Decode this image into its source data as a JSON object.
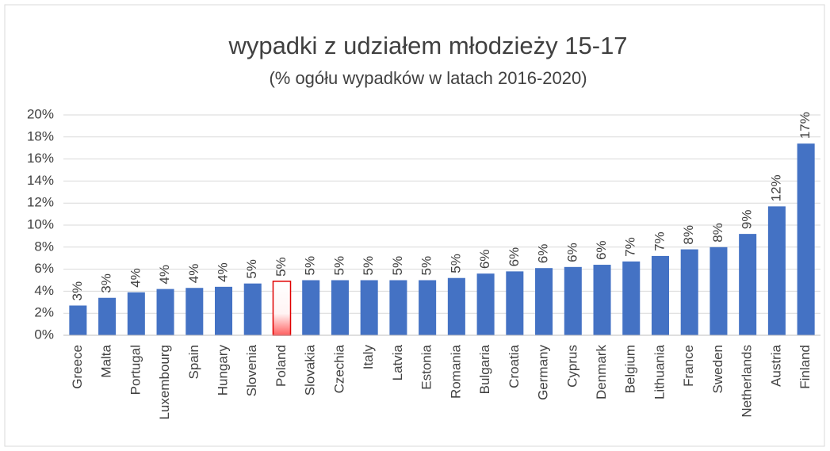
{
  "chart_data": {
    "type": "bar",
    "title": "wypadki z udziałem młodzieży 15-17",
    "subtitle": "(% ogółu wypadków w latach 2016-2020)",
    "categories": [
      "Greece",
      "Malta",
      "Portugal",
      "Luxembourg",
      "Spain",
      "Hungary",
      "Slovenia",
      "Poland",
      "Slovakia",
      "Czechia",
      "Italy",
      "Latvia",
      "Estonia",
      "Romania",
      "Bulgaria",
      "Croatia",
      "Germany",
      "Cyprus",
      "Denmark",
      "Belgium",
      "Lithuania",
      "France",
      "Sweden",
      "Netherlands",
      "Austria",
      "Finland"
    ],
    "values": [
      2.7,
      3.4,
      3.9,
      4.2,
      4.3,
      4.4,
      4.7,
      4.9,
      5.0,
      5.0,
      5.0,
      5.0,
      5.0,
      5.2,
      5.6,
      5.8,
      6.1,
      6.2,
      6.4,
      6.7,
      7.2,
      7.8,
      8.0,
      9.2,
      11.7,
      17.4
    ],
    "value_labels": [
      "3%",
      "3%",
      "4%",
      "4%",
      "4%",
      "4%",
      "5%",
      "5%",
      "5%",
      "5%",
      "5%",
      "5%",
      "5%",
      "5%",
      "6%",
      "6%",
      "6%",
      "6%",
      "6%",
      "7%",
      "7%",
      "8%",
      "8%",
      "9%",
      "12%",
      "17%"
    ],
    "color": "#4472c4",
    "colors": [
      "#4472c4",
      "#4472c4",
      "#4472c4",
      "#4472c4",
      "#4472c4",
      "#4472c4",
      "#4472c4",
      "#e00000",
      "#4472c4",
      "#4472c4",
      "#4472c4",
      "#4472c4",
      "#4472c4",
      "#4472c4",
      "#4472c4",
      "#4472c4",
      "#4472c4",
      "#4472c4",
      "#4472c4",
      "#4472c4",
      "#4472c4",
      "#4472c4",
      "#4472c4",
      "#4472c4",
      "#4472c4",
      "#4472c4"
    ],
    "ylim": [
      0,
      20
    ],
    "yticks": [
      {
        "value": 0,
        "label": "0%"
      },
      {
        "value": 2,
        "label": "2%"
      },
      {
        "value": 4,
        "label": "4%"
      },
      {
        "value": 6,
        "label": "6%"
      },
      {
        "value": 8,
        "label": "8%"
      },
      {
        "value": 10,
        "label": "10%"
      },
      {
        "value": 12,
        "label": "12%"
      },
      {
        "value": 14,
        "label": "14%"
      },
      {
        "value": 16,
        "label": "16%"
      },
      {
        "value": 18,
        "label": "18%"
      },
      {
        "value": 20,
        "label": "20%"
      }
    ],
    "grid": true
  }
}
